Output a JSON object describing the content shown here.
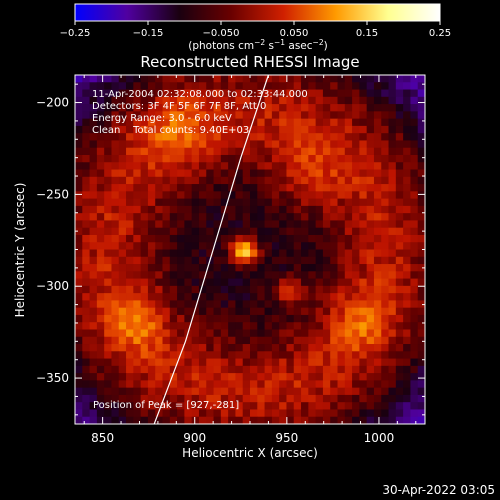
{
  "chart_data": {
    "type": "heatmap",
    "title": "Reconstructed RHESSI Image",
    "xlabel": "Heliocentric X (arcsec)",
    "ylabel": "Heliocentric Y (arcsec)",
    "xlim": [
      835,
      1025
    ],
    "ylim": [
      -375,
      -185
    ],
    "x_ticks": [
      850,
      900,
      950,
      1000
    ],
    "y_ticks": [
      -350,
      -300,
      -250,
      -200
    ],
    "x_tick_labels": [
      "850",
      "900",
      "950",
      "1000"
    ],
    "y_tick_labels": [
      "−350",
      "−300",
      "−250",
      "−200"
    ],
    "colorbar": {
      "range": [
        -0.25,
        0.25
      ],
      "ticks": [
        -0.25,
        -0.15,
        -0.05,
        0.05,
        0.15,
        0.25
      ],
      "tick_labels": [
        "−0.25",
        "−0.15",
        "−0.050",
        "0.050",
        "0.15",
        "0.25"
      ],
      "units_prefix": "(photons cm",
      "units_sup1": "−2",
      "units_mid": " s",
      "units_sup2": "−1",
      "units_mid2": " asec",
      "units_sup3": "−2",
      "units_suffix": ")",
      "colors": [
        "#0000ff",
        "#5000a0",
        "#1a0010",
        "#6a0000",
        "#d02000",
        "#ff9a00",
        "#ffff90",
        "#ffffff"
      ]
    },
    "annotations": {
      "time_range": "11-Apr-2004 02:32:08.000 to 02:33:44.000",
      "detectors": "Detectors: 3F 4F 5F 6F 7F 8F, Att 0",
      "energy": "Energy Range: 3.0 - 6.0 keV",
      "clean": "Clean    Total counts: 9.40E+03",
      "peak": "Position of Peak = [927,-281]"
    },
    "peak": {
      "x": 927,
      "y": -281
    },
    "limb_curve": [
      {
        "x": 878,
        "y": -375
      },
      {
        "x": 895,
        "y": -330
      },
      {
        "x": 910,
        "y": -280
      },
      {
        "x": 925,
        "y": -230
      },
      {
        "x": 940,
        "y": -185
      }
    ],
    "sources": [
      {
        "x": 927,
        "y": -281,
        "amp": 0.26,
        "sigma": 5
      },
      {
        "x": 952,
        "y": -303,
        "amp": 0.1,
        "sigma": 6
      },
      {
        "x": 868,
        "y": -320,
        "amp": 0.08,
        "sigma": 12
      },
      {
        "x": 990,
        "y": -320,
        "amp": 0.07,
        "sigma": 12
      },
      {
        "x": 890,
        "y": -215,
        "amp": 0.07,
        "sigma": 14
      },
      {
        "x": 960,
        "y": -240,
        "amp": 0.06,
        "sigma": 14
      }
    ],
    "ring": {
      "cx": 928,
      "cy": -282,
      "radius": 75,
      "width": 20,
      "amp": 0.1
    },
    "grid": false
  },
  "timestamp": "30-Apr-2022 03:05"
}
